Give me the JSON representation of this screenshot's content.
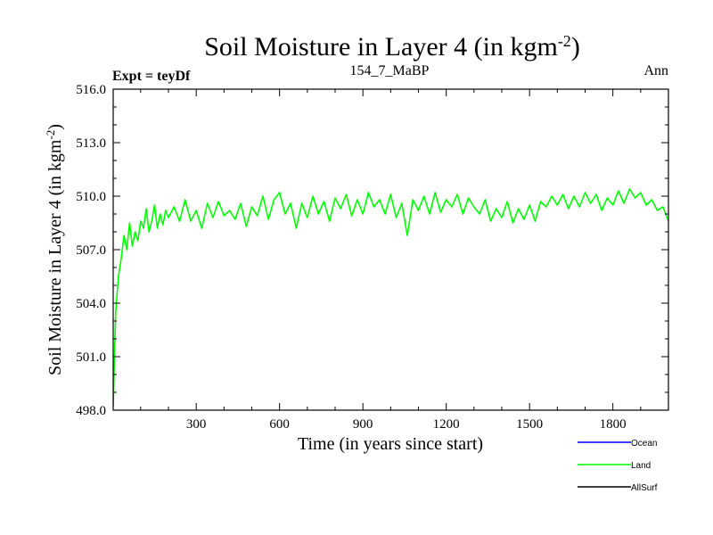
{
  "chart_data": {
    "type": "line",
    "title": "Soil Moisture in Layer 4 (in kgm",
    "title_sup": "-2",
    "title_end": ")",
    "subtitle_left": "Expt = teyDf",
    "subtitle_center": "154_7_MaBP",
    "subtitle_right": "Ann",
    "xlabel": "Time (in years since start)",
    "ylabel": "Soil Moisture in Layer 4 (in kgm",
    "ylabel_sup": "-2",
    "ylabel_end": ")",
    "xlim": [
      1,
      2000
    ],
    "ylim": [
      498.0,
      516.0
    ],
    "x_ticks": [
      300,
      600,
      900,
      1200,
      1500,
      1800
    ],
    "x_tick_labels": [
      "300",
      "600",
      "900",
      "1200",
      "1500",
      "1800"
    ],
    "y_ticks": [
      498,
      501,
      504,
      507,
      510,
      513,
      516
    ],
    "y_tick_labels": [
      "498.0",
      "501.0",
      "504.0",
      "507.0",
      "510.0",
      "513.0",
      "516.0"
    ],
    "grid": false,
    "legend_position": "bottom-right",
    "series": [
      {
        "name": "Ocean",
        "color": "#0000ff",
        "values": []
      },
      {
        "name": "Land",
        "color": "#00ff00",
        "x": [
          1,
          5,
          10,
          20,
          30,
          40,
          50,
          60,
          70,
          80,
          90,
          100,
          110,
          120,
          130,
          140,
          150,
          160,
          170,
          180,
          190,
          200,
          220,
          240,
          260,
          280,
          300,
          320,
          340,
          360,
          380,
          400,
          420,
          440,
          460,
          480,
          500,
          520,
          540,
          560,
          580,
          600,
          620,
          640,
          660,
          680,
          700,
          720,
          740,
          760,
          780,
          800,
          820,
          840,
          860,
          880,
          900,
          920,
          940,
          960,
          980,
          1000,
          1020,
          1040,
          1060,
          1080,
          1100,
          1120,
          1140,
          1160,
          1180,
          1200,
          1220,
          1240,
          1260,
          1280,
          1300,
          1320,
          1340,
          1360,
          1380,
          1400,
          1420,
          1440,
          1460,
          1480,
          1500,
          1520,
          1540,
          1560,
          1580,
          1600,
          1620,
          1640,
          1660,
          1680,
          1700,
          1720,
          1740,
          1760,
          1780,
          1800,
          1820,
          1840,
          1860,
          1880,
          1900,
          1920,
          1940,
          1960,
          1980,
          2000
        ],
        "values": [
          498.2,
          500.5,
          503.5,
          505.5,
          506.5,
          507.8,
          507.0,
          508.5,
          507.2,
          508.0,
          507.5,
          508.6,
          508.2,
          509.3,
          508.0,
          508.6,
          509.5,
          508.2,
          509.0,
          508.4,
          509.2,
          508.8,
          509.4,
          508.6,
          509.8,
          508.6,
          509.2,
          508.2,
          509.6,
          508.8,
          509.7,
          508.9,
          509.2,
          508.7,
          509.6,
          508.3,
          509.4,
          508.9,
          510.0,
          508.7,
          509.8,
          510.2,
          509.0,
          509.6,
          508.2,
          509.6,
          508.8,
          510.0,
          509.0,
          509.7,
          508.6,
          509.9,
          509.3,
          510.1,
          508.9,
          509.8,
          509.0,
          510.2,
          509.4,
          509.8,
          509.0,
          510.1,
          508.8,
          509.6,
          507.8,
          509.8,
          509.2,
          510.0,
          509.0,
          510.2,
          509.1,
          509.8,
          509.4,
          510.1,
          509.0,
          509.9,
          509.4,
          509.0,
          509.8,
          508.6,
          509.3,
          508.8,
          509.7,
          508.5,
          509.3,
          508.7,
          509.5,
          508.6,
          509.7,
          509.4,
          510.0,
          509.5,
          510.1,
          509.3,
          510.0,
          509.4,
          510.2,
          509.6,
          510.1,
          509.2,
          509.9,
          509.5,
          510.3,
          509.6,
          510.4,
          509.9,
          510.2,
          509.5,
          509.8,
          509.2,
          509.4,
          508.6
        ]
      },
      {
        "name": "AllSurf",
        "color": "#000000",
        "values": []
      }
    ]
  }
}
